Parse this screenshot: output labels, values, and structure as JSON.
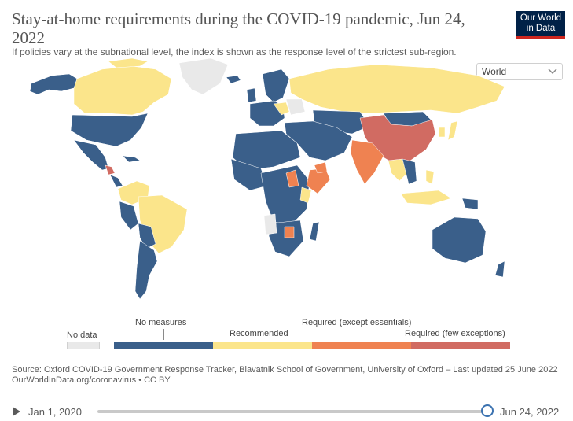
{
  "header": {
    "title": "Stay-at-home requirements during the COVID-19 pandemic, Jun 24, 2022",
    "subtitle": "If policies vary at the subnational level, the index is shown as the response level of the strictest sub-region.",
    "logo_line1": "Our World",
    "logo_line2": "in Data"
  },
  "region_select": {
    "value": "World",
    "icon": "chevron-down-icon"
  },
  "legend": {
    "no_data": "No data",
    "categories": [
      {
        "label": "No measures",
        "color": "#3a5f8a"
      },
      {
        "label": "Recommended",
        "color": "#fbe58b"
      },
      {
        "label": "Required (except essentials)",
        "color": "#ef8251"
      },
      {
        "label": "Required (few exceptions)",
        "color": "#d16b62"
      }
    ],
    "no_data_color": "#e9e9e9"
  },
  "source": {
    "line1": "Source: Oxford COVID-19 Government Response Tracker, Blavatnik School of Government, University of Oxford – Last updated 25 June 2022",
    "line2": "OurWorldInData.org/coronavirus • CC BY"
  },
  "timeline": {
    "start": "Jan 1, 2020",
    "end": "Jun 24, 2022",
    "position": 1.0,
    "play_icon": "play-icon"
  },
  "map_colors": {
    "no_measures": "#3a5f8a",
    "recommended": "#fbe58b",
    "required_except_essentials": "#ef8251",
    "required_few_exceptions": "#d16b62",
    "no_data": "#e9e9e9"
  }
}
